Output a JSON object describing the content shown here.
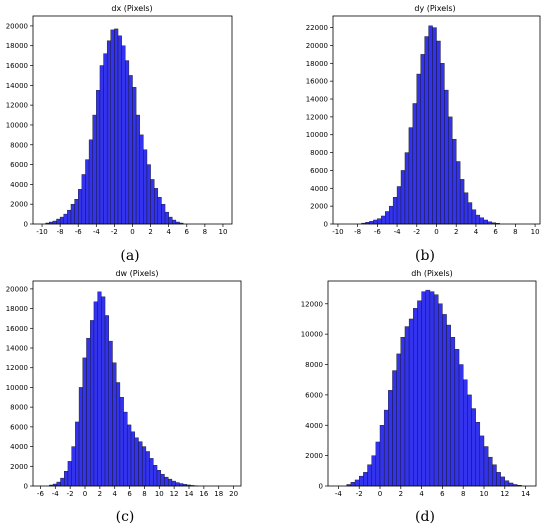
{
  "chart_data": [
    {
      "type": "bar",
      "panel_label": "(a)",
      "title": "dx (Pixels)",
      "bin_start": -9.6,
      "bin_width": 0.4,
      "values": [
        100,
        200,
        300,
        500,
        700,
        1000,
        1400,
        2000,
        2500,
        3500,
        5000,
        6500,
        8500,
        11000,
        13500,
        16000,
        17200,
        18500,
        19600,
        19700,
        19000,
        18000,
        16500,
        15000,
        13800,
        11000,
        9000,
        7500,
        6000,
        4500,
        3600,
        2700,
        2000,
        1200,
        700,
        400,
        200,
        100
      ],
      "xlim": [
        -11,
        11
      ],
      "ylim": [
        0,
        21000
      ],
      "xticks": [
        "-10",
        "-8",
        "-6",
        "-4",
        "-2",
        "0",
        "2",
        "4",
        "6",
        "8",
        "10"
      ],
      "yticks": [
        "0",
        "2000",
        "4000",
        "6000",
        "8000",
        "10000",
        "12000",
        "14000",
        "16000",
        "18000",
        "20000"
      ],
      "bar_color": "#3333ee",
      "edge_color": "#111111"
    },
    {
      "type": "bar",
      "panel_label": "(b)",
      "title": "dy (Pixels)",
      "bin_start": -7.6,
      "bin_width": 0.4,
      "values": [
        100,
        200,
        300,
        450,
        600,
        900,
        1400,
        2000,
        3000,
        4200,
        6000,
        8000,
        10800,
        13500,
        16800,
        19000,
        21000,
        22200,
        22000,
        20500,
        18000,
        15000,
        12000,
        9500,
        7000,
        5000,
        3500,
        2400,
        1600,
        1000,
        700,
        450,
        250,
        150,
        80
      ],
      "xlim": [
        -10.5,
        10.5
      ],
      "ylim": [
        0,
        23300
      ],
      "xticks": [
        "-10",
        "-8",
        "-6",
        "-4",
        "-2",
        "0",
        "2",
        "4",
        "6",
        "8",
        "10"
      ],
      "yticks": [
        "0",
        "2000",
        "4000",
        "6000",
        "8000",
        "10000",
        "12000",
        "14000",
        "16000",
        "18000",
        "20000",
        "22000"
      ],
      "bar_color": "#3333ee",
      "edge_color": "#111111"
    },
    {
      "type": "bar",
      "panel_label": "(c)",
      "title": "dw (Pixels)",
      "bin_start": -4.8,
      "bin_width": 0.5,
      "values": [
        100,
        200,
        400,
        800,
        1500,
        2500,
        4000,
        6500,
        10000,
        13000,
        15000,
        16800,
        18700,
        19700,
        19200,
        17300,
        14700,
        12500,
        10500,
        9000,
        7500,
        6200,
        5500,
        4900,
        4500,
        4000,
        3500,
        2800,
        2100,
        1600,
        1200,
        900,
        700,
        500,
        350,
        250,
        170,
        110,
        60,
        30
      ],
      "xlim": [
        -7,
        21
      ],
      "ylim": [
        0,
        20800
      ],
      "xticks": [
        "-6",
        "-4",
        "-2",
        "0",
        "2",
        "4",
        "6",
        "8",
        "10",
        "12",
        "14",
        "16",
        "18",
        "20"
      ],
      "yticks": [
        "0",
        "2000",
        "4000",
        "6000",
        "8000",
        "10000",
        "12000",
        "14000",
        "16000",
        "18000",
        "20000"
      ],
      "bar_color": "#3333ee",
      "edge_color": "#111111"
    },
    {
      "type": "bar",
      "panel_label": "(d)",
      "title": "dh (Pixels)",
      "bin_start": -3.2,
      "bin_width": 0.4,
      "values": [
        100,
        250,
        400,
        650,
        900,
        1400,
        2000,
        2900,
        4000,
        5000,
        6300,
        7600,
        8700,
        9800,
        10500,
        11000,
        11700,
        12200,
        12800,
        12900,
        12800,
        12600,
        12000,
        11300,
        10600,
        9800,
        9000,
        8000,
        7000,
        6000,
        5100,
        4200,
        3300,
        2600,
        1900,
        1400,
        900,
        600,
        350,
        200,
        100,
        50
      ],
      "xlim": [
        -5,
        15
      ],
      "ylim": [
        0,
        13500
      ],
      "xticks": [
        "-4",
        "-2",
        "0",
        "2",
        "4",
        "6",
        "8",
        "10",
        "12",
        "14"
      ],
      "yticks": [
        "0",
        "2000",
        "4000",
        "6000",
        "8000",
        "10000",
        "12000"
      ],
      "bar_color": "#3333ee",
      "edge_color": "#111111"
    }
  ]
}
